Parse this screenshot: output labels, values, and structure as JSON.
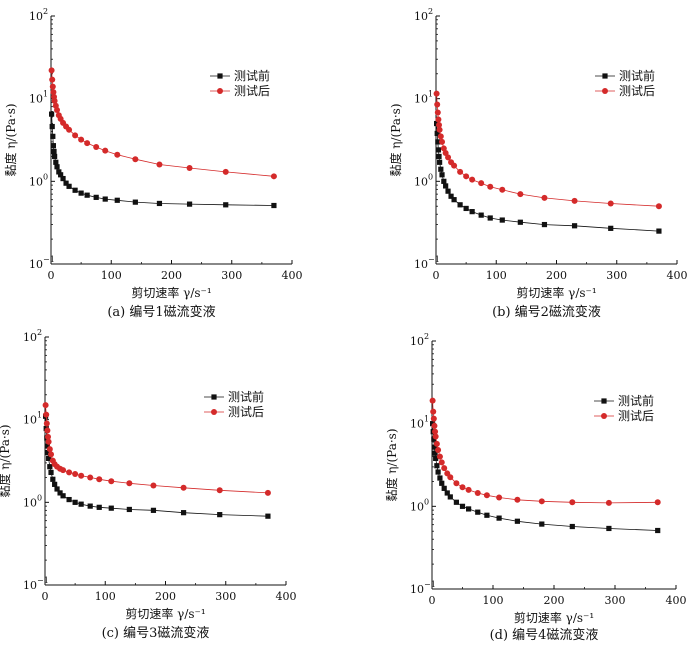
{
  "colors": {
    "before": "#111111",
    "after": "#d42a2a",
    "axis": "#111111"
  },
  "chart_data": [
    {
      "type": "line",
      "caption": "(a) 编号1磁流变液",
      "xlabel": "剪切速率 γ/s⁻¹",
      "ylabel": "黏度 η/(Pa·s)",
      "xlim": [
        0,
        400
      ],
      "ylim": [
        0.1,
        100
      ],
      "yscale": "log",
      "legend_position": "top-right",
      "x_ticks": [
        "0",
        "100",
        "200",
        "300",
        "400"
      ],
      "y_ticks": [
        [
          "10",
          "−1"
        ],
        [
          "10",
          "0"
        ],
        [
          "10",
          "1"
        ],
        [
          "10",
          "2"
        ]
      ],
      "series": [
        {
          "name": "测试前",
          "x": [
            1,
            2,
            3,
            4,
            5,
            6,
            8,
            10,
            13,
            16,
            20,
            25,
            30,
            40,
            50,
            60,
            75,
            90,
            110,
            140,
            180,
            230,
            290,
            370
          ],
          "y": [
            6.5,
            4.6,
            3.5,
            2.7,
            2.3,
            2.0,
            1.7,
            1.5,
            1.3,
            1.2,
            1.08,
            0.95,
            0.87,
            0.78,
            0.72,
            0.68,
            0.64,
            0.61,
            0.59,
            0.56,
            0.54,
            0.53,
            0.52,
            0.51
          ]
        },
        {
          "name": "测试后",
          "x": [
            1,
            2,
            3,
            4,
            5,
            6,
            8,
            10,
            13,
            16,
            20,
            25,
            30,
            40,
            50,
            60,
            75,
            90,
            110,
            140,
            180,
            230,
            290,
            370
          ],
          "y": [
            22,
            17,
            14,
            12,
            10.5,
            9.4,
            8.2,
            7.3,
            6.3,
            5.7,
            5.1,
            4.6,
            4.2,
            3.6,
            3.2,
            2.9,
            2.6,
            2.35,
            2.1,
            1.85,
            1.6,
            1.45,
            1.3,
            1.15
          ]
        }
      ]
    },
    {
      "type": "line",
      "caption": "(b) 编号2磁流变液",
      "xlabel": "剪切速率 γ/s⁻¹",
      "ylabel": "黏度 η/(Pa·s)",
      "xlim": [
        0,
        400
      ],
      "ylim": [
        0.1,
        100
      ],
      "yscale": "log",
      "legend_position": "top-right",
      "x_ticks": [
        "0",
        "100",
        "200",
        "300",
        "400"
      ],
      "y_ticks": [
        [
          "10",
          "−1"
        ],
        [
          "10",
          "0"
        ],
        [
          "10",
          "1"
        ],
        [
          "10",
          "2"
        ]
      ],
      "series": [
        {
          "name": "测试前",
          "x": [
            1,
            2,
            3,
            4,
            5,
            6,
            8,
            10,
            13,
            16,
            20,
            25,
            30,
            40,
            50,
            60,
            75,
            90,
            110,
            140,
            180,
            230,
            290,
            370
          ],
          "y": [
            5,
            3.8,
            3.0,
            2.4,
            2.0,
            1.7,
            1.4,
            1.2,
            1.0,
            0.88,
            0.76,
            0.66,
            0.6,
            0.52,
            0.47,
            0.43,
            0.39,
            0.36,
            0.34,
            0.32,
            0.3,
            0.29,
            0.27,
            0.25
          ]
        },
        {
          "name": "测试后",
          "x": [
            1,
            2,
            3,
            4,
            5,
            6,
            8,
            10,
            13,
            16,
            20,
            25,
            30,
            40,
            50,
            60,
            75,
            90,
            110,
            140,
            180,
            230,
            290,
            370
          ],
          "y": [
            11.5,
            8.5,
            6.8,
            5.6,
            4.8,
            4.2,
            3.5,
            3.0,
            2.5,
            2.2,
            1.95,
            1.7,
            1.55,
            1.3,
            1.15,
            1.05,
            0.95,
            0.86,
            0.79,
            0.7,
            0.63,
            0.58,
            0.54,
            0.5
          ]
        }
      ]
    },
    {
      "type": "line",
      "caption": "(c) 编号3磁流变液",
      "xlabel": "剪切速率 γ/s⁻¹",
      "ylabel": "黏度 η/(Pa·s)",
      "xlim": [
        0,
        400
      ],
      "ylim": [
        0.1,
        100
      ],
      "yscale": "log",
      "legend_position": "top-right",
      "x_ticks": [
        "0",
        "100",
        "200",
        "300",
        "400"
      ],
      "y_ticks": [
        [
          "10",
          "−1"
        ],
        [
          "10",
          "0"
        ],
        [
          "10",
          "1"
        ],
        [
          "10",
          "2"
        ]
      ],
      "series": [
        {
          "name": "测试前",
          "x": [
            1,
            2,
            3,
            4,
            5,
            6,
            8,
            10,
            13,
            16,
            20,
            25,
            30,
            40,
            50,
            60,
            75,
            90,
            110,
            140,
            180,
            230,
            290,
            370
          ],
          "y": [
            11,
            7.8,
            6.0,
            4.8,
            4.0,
            3.4,
            2.7,
            2.3,
            1.9,
            1.65,
            1.45,
            1.3,
            1.2,
            1.08,
            1.0,
            0.95,
            0.9,
            0.87,
            0.85,
            0.82,
            0.8,
            0.75,
            0.71,
            0.68
          ]
        },
        {
          "name": "测试后",
          "x": [
            1,
            2,
            3,
            4,
            5,
            6,
            8,
            10,
            13,
            16,
            20,
            25,
            30,
            40,
            50,
            60,
            75,
            90,
            110,
            140,
            180,
            230,
            290,
            370
          ],
          "y": [
            15,
            11.5,
            9.0,
            7.4,
            6.2,
            5.4,
            4.4,
            3.8,
            3.2,
            2.9,
            2.7,
            2.55,
            2.45,
            2.3,
            2.2,
            2.1,
            2.0,
            1.9,
            1.8,
            1.7,
            1.6,
            1.5,
            1.4,
            1.3
          ]
        }
      ]
    },
    {
      "type": "line",
      "caption": "(d) 编号4磁流变液",
      "xlabel": "剪切速率 γ/s⁻¹",
      "ylabel": "黏度 η/(Pa·s)",
      "xlim": [
        0,
        400
      ],
      "ylim": [
        0.1,
        100
      ],
      "yscale": "log",
      "legend_position": "top-right",
      "x_ticks": [
        "0",
        "100",
        "200",
        "300",
        "400"
      ],
      "y_ticks": [
        [
          "10",
          "−1"
        ],
        [
          "10",
          "0"
        ],
        [
          "10",
          "1"
        ],
        [
          "10",
          "2"
        ]
      ],
      "series": [
        {
          "name": "测试前",
          "x": [
            1,
            2,
            3,
            4,
            5,
            6,
            8,
            10,
            13,
            16,
            20,
            25,
            30,
            40,
            50,
            60,
            75,
            90,
            110,
            140,
            180,
            230,
            290,
            370
          ],
          "y": [
            10,
            8.0,
            6.5,
            5.2,
            4.4,
            3.8,
            3.1,
            2.6,
            2.2,
            1.9,
            1.65,
            1.45,
            1.3,
            1.12,
            1.0,
            0.93,
            0.85,
            0.78,
            0.72,
            0.66,
            0.61,
            0.57,
            0.54,
            0.51
          ]
        },
        {
          "name": "测试后",
          "x": [
            1,
            2,
            3,
            4,
            5,
            6,
            8,
            10,
            13,
            16,
            20,
            25,
            30,
            40,
            50,
            60,
            75,
            90,
            110,
            140,
            180,
            230,
            290,
            370
          ],
          "y": [
            19,
            14,
            11.5,
            9.4,
            8.0,
            7.0,
            5.7,
            4.8,
            4.0,
            3.4,
            2.9,
            2.5,
            2.25,
            1.9,
            1.7,
            1.58,
            1.45,
            1.36,
            1.28,
            1.2,
            1.15,
            1.12,
            1.1,
            1.12
          ]
        }
      ]
    }
  ]
}
